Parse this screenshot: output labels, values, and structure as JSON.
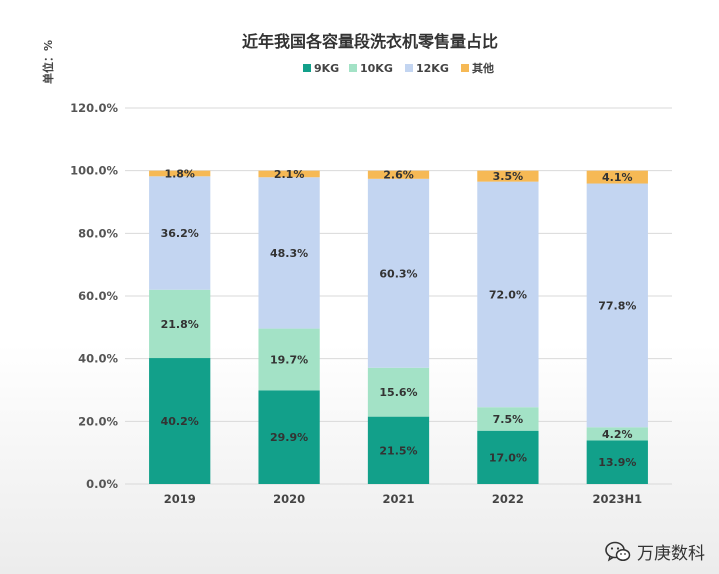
{
  "chart_data": {
    "type": "bar",
    "stacked": true,
    "title": "近年我国各容量段洗衣机零售量占比",
    "unit_label": "单位：%",
    "categories": [
      "2019",
      "2020",
      "2021",
      "2022",
      "2023H1"
    ],
    "series": [
      {
        "name": "9KG",
        "color": "#12a08a",
        "values": [
          40.2,
          29.9,
          21.5,
          17.0,
          13.9
        ]
      },
      {
        "name": "10KG",
        "color": "#a3e2c6",
        "values": [
          21.8,
          19.7,
          15.6,
          7.5,
          4.2
        ]
      },
      {
        "name": "12KG",
        "color": "#c3d5f1",
        "values": [
          36.2,
          48.3,
          60.3,
          72.0,
          77.8
        ]
      },
      {
        "name": "其他",
        "color": "#f6b955",
        "values": [
          1.8,
          2.1,
          2.6,
          3.5,
          4.1
        ]
      }
    ],
    "data_labels": [
      [
        "40.2%",
        "29.9%",
        "21.5%",
        "17.0%",
        "13.9%"
      ],
      [
        "21.8%",
        "19.7%",
        "15.6%",
        "7.5%",
        "4.2%"
      ],
      [
        "36.2%",
        "48.3%",
        "60.3%",
        "72.0%",
        "77.8%"
      ],
      [
        "1.8%",
        "2.1%",
        "2.6%",
        "3.5%",
        "4.1%"
      ]
    ],
    "ylim": [
      0,
      120
    ],
    "yticks": [
      0,
      20,
      40,
      60,
      80,
      100,
      120
    ],
    "ytick_labels": [
      "0.0%",
      "20.0%",
      "40.0%",
      "60.0%",
      "80.0%",
      "100.0%",
      "120.0%"
    ],
    "grid": true,
    "legend_position": "top-center",
    "xlabel": "",
    "ylabel": ""
  },
  "watermark": {
    "text": "万庚数科",
    "icon": "wechat-icon"
  }
}
